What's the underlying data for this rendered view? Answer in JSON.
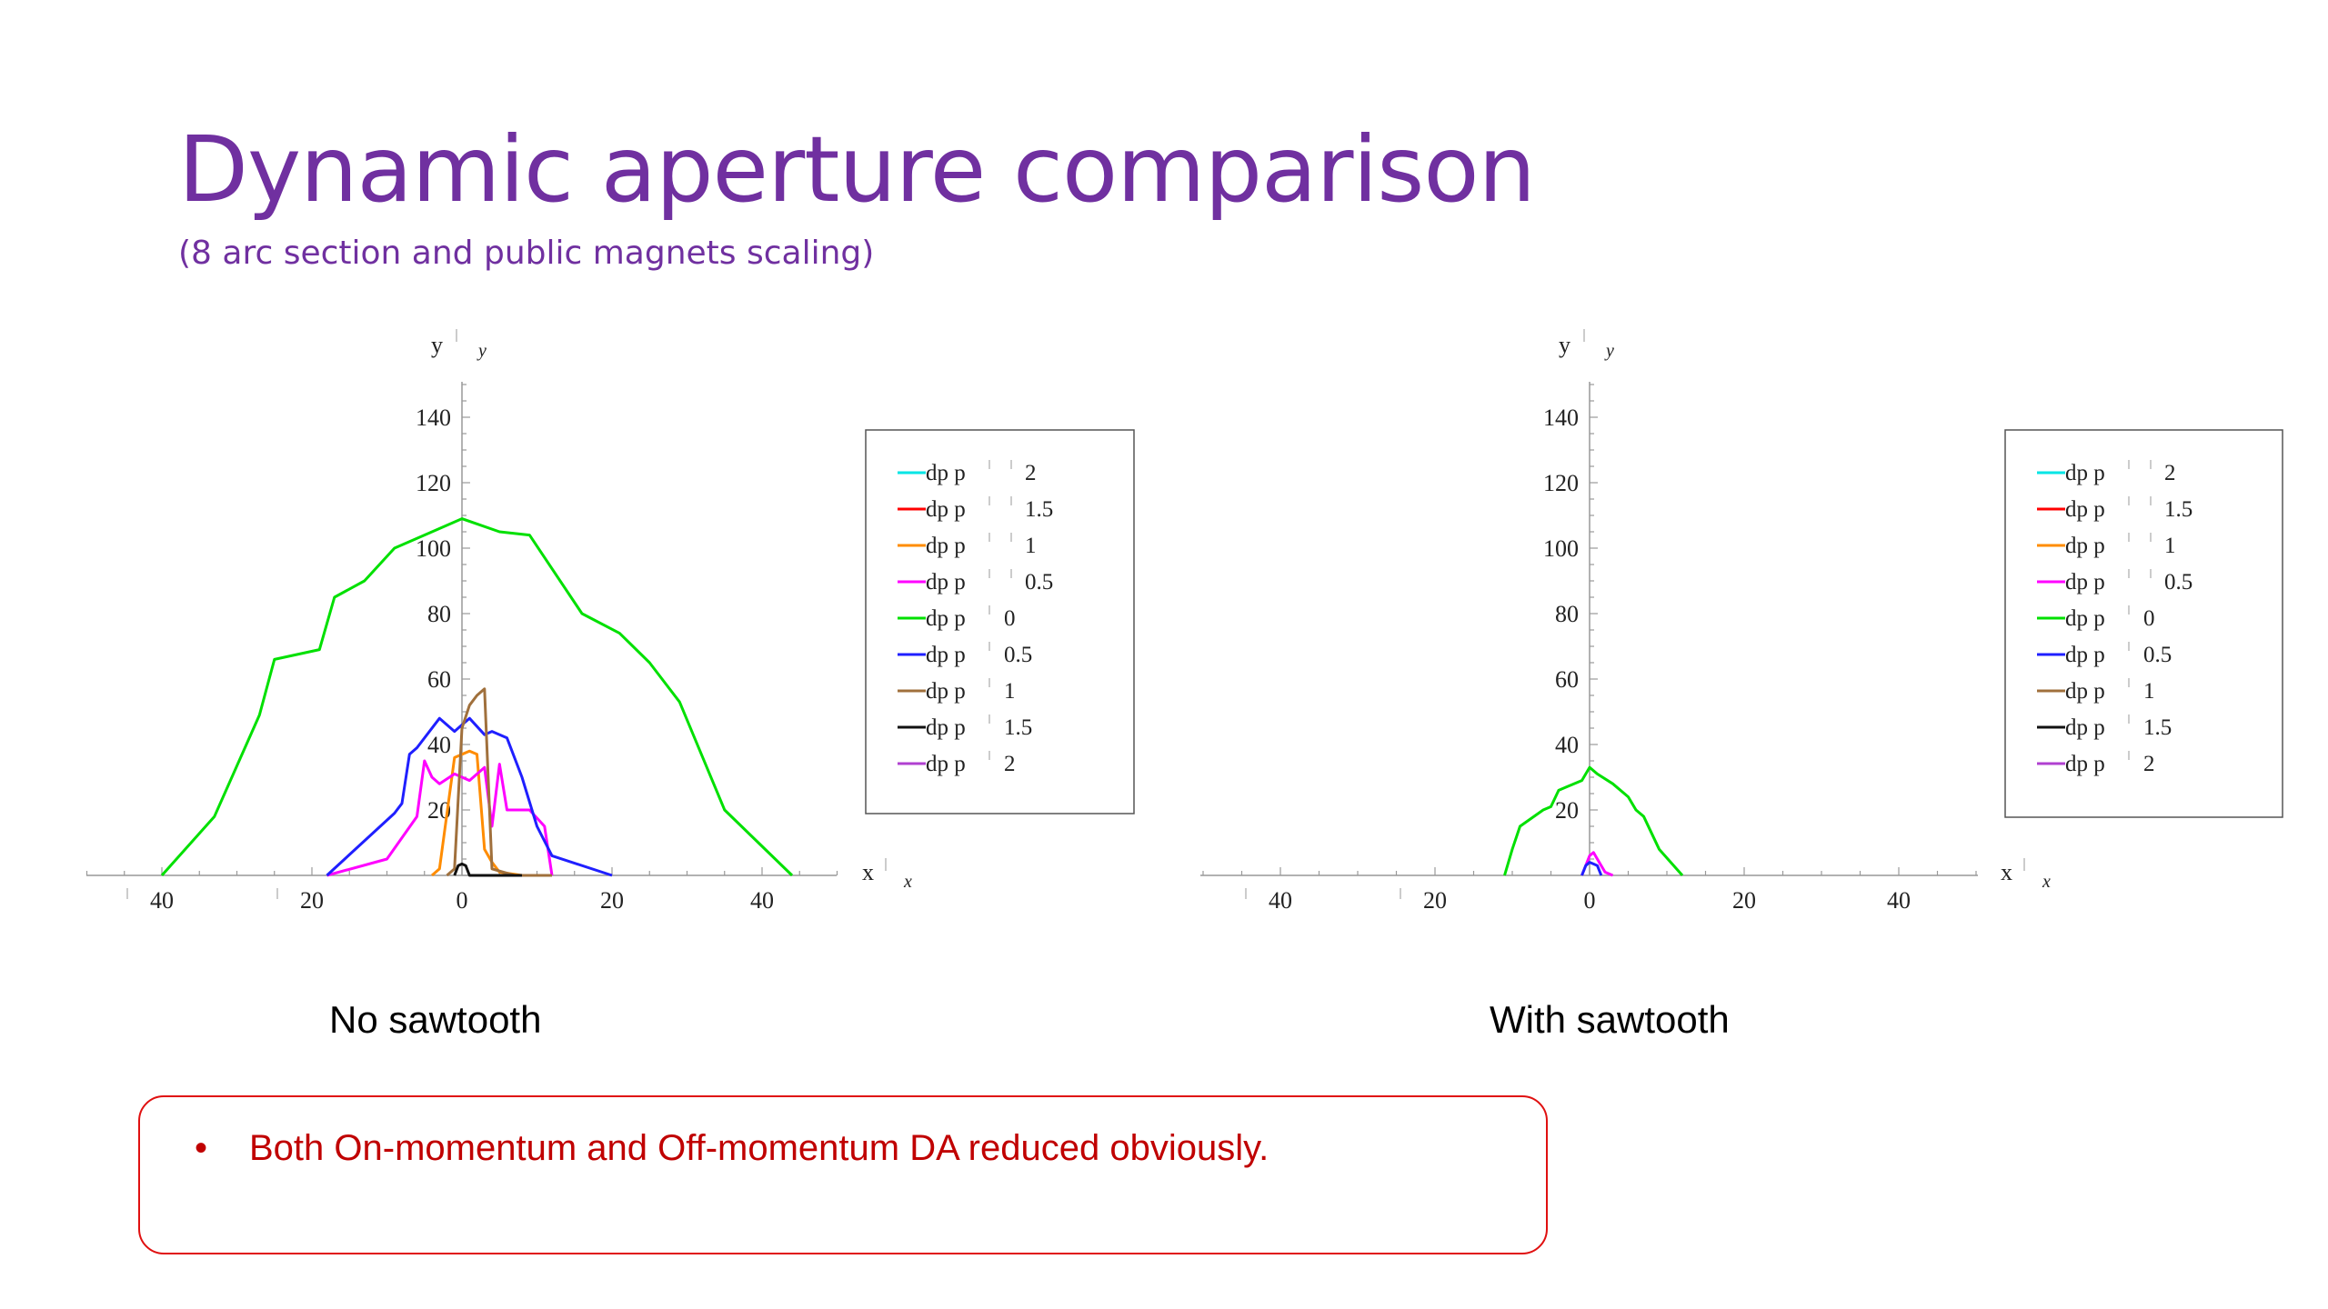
{
  "slide": {
    "title": "Dynamic aperture comparison",
    "subtitle": "(8 arc section and public magnets scaling)",
    "conclusion": {
      "bullet": "•",
      "text": "Both On-momentum and Off-momentum DA reduced obviously."
    }
  },
  "chart_data": [
    {
      "type": "line",
      "caption": "No sawtooth",
      "xlabel": "x",
      "xlabel_sub": "x",
      "ylabel": "y",
      "ylabel_sub": "y",
      "xlim": [
        -50,
        50
      ],
      "ylim": [
        0,
        150
      ],
      "x_ticks": [
        -40,
        -20,
        0,
        20,
        40
      ],
      "x_tick_labels": [
        "40",
        "20",
        "0",
        "20",
        "40"
      ],
      "y_ticks": [
        20,
        40,
        60,
        80,
        100,
        120,
        140
      ],
      "y_tick_labels": [
        "20",
        "40",
        "60",
        "80",
        "100",
        "120",
        "140"
      ],
      "legend_position": "right",
      "series": [
        {
          "name": "dp p  2",
          "label_prefix": "dp p",
          "label_value": "2",
          "color": "#00e5e5",
          "x": [],
          "y": []
        },
        {
          "name": "dp p  1.5",
          "label_prefix": "dp p",
          "label_value": "1.5",
          "color": "#ff0000",
          "x": [],
          "y": []
        },
        {
          "name": "dp p  1",
          "label_prefix": "dp p",
          "label_value": "1",
          "color": "#ff8c00",
          "x": [
            -4,
            -3,
            -1,
            1,
            2,
            3,
            4,
            5,
            8,
            12
          ],
          "y": [
            0,
            2,
            36,
            38,
            37,
            8,
            4,
            1,
            0,
            0
          ]
        },
        {
          "name": "dp p  0.5",
          "label_prefix": "dp p",
          "label_value": "0.5",
          "color": "#ff00ff",
          "x": [
            -18,
            -10,
            -6,
            -5,
            -4,
            -3,
            -1,
            1,
            3,
            4,
            5,
            6,
            9,
            11,
            12
          ],
          "y": [
            0,
            5,
            18,
            35,
            30,
            28,
            31,
            29,
            33,
            15,
            34,
            20,
            20,
            15,
            0
          ]
        },
        {
          "name": "dp p 0",
          "label_prefix": "dp p",
          "label_value": "0",
          "color": "#00e000",
          "x": [
            -40,
            -33,
            -27,
            -25,
            -19,
            -17,
            -13,
            -9,
            -5,
            0,
            5,
            9,
            16,
            21,
            25,
            29,
            35,
            44
          ],
          "y": [
            0,
            18,
            49,
            66,
            69,
            85,
            90,
            100,
            104,
            109,
            105,
            104,
            80,
            74,
            65,
            53,
            20,
            0
          ]
        },
        {
          "name": "dp p 0.5",
          "label_prefix": "dp p",
          "label_value": "0.5",
          "color": "#1f1fff",
          "x": [
            -18,
            -9,
            -8,
            -7,
            -6,
            -3,
            -1,
            0,
            1,
            3,
            4,
            6,
            8,
            10,
            12,
            20
          ],
          "y": [
            0,
            19,
            22,
            37,
            39,
            48,
            44,
            46,
            48,
            43,
            44,
            42,
            30,
            15,
            6,
            0
          ]
        },
        {
          "name": "dp p 1",
          "label_prefix": "dp p",
          "label_value": "1",
          "color": "#a0703c",
          "x": [
            -2,
            -1,
            0,
            1,
            2,
            3,
            4,
            7,
            12
          ],
          "y": [
            0,
            2,
            45,
            52,
            55,
            57,
            2,
            0,
            0
          ]
        },
        {
          "name": "dp p 1.5",
          "label_prefix": "dp p",
          "label_value": "1.5",
          "color": "#111111",
          "x": [
            -1,
            -0.5,
            0,
            0.5,
            1,
            5,
            8
          ],
          "y": [
            0,
            3,
            3.5,
            3,
            0,
            0,
            0
          ]
        },
        {
          "name": "dp p 2",
          "label_prefix": "dp p",
          "label_value": "2",
          "color": "#b040d0",
          "x": [],
          "y": []
        }
      ]
    },
    {
      "type": "line",
      "caption": "With sawtooth",
      "xlabel": "x",
      "xlabel_sub": "x",
      "ylabel": "y",
      "ylabel_sub": "y",
      "xlim": [
        -50,
        50
      ],
      "ylim": [
        0,
        150
      ],
      "x_ticks": [
        -40,
        -20,
        0,
        20,
        40
      ],
      "x_tick_labels": [
        "40",
        "20",
        "0",
        "20",
        "40"
      ],
      "y_ticks": [
        20,
        40,
        60,
        80,
        100,
        120,
        140
      ],
      "y_tick_labels": [
        "20",
        "40",
        "60",
        "80",
        "100",
        "120",
        "140"
      ],
      "legend_position": "right",
      "series": [
        {
          "name": "dp p  2",
          "label_prefix": "dp p",
          "label_value": "2",
          "color": "#00e5e5",
          "x": [],
          "y": []
        },
        {
          "name": "dp p  1.5",
          "label_prefix": "dp p",
          "label_value": "1.5",
          "color": "#ff0000",
          "x": [],
          "y": []
        },
        {
          "name": "dp p  1",
          "label_prefix": "dp p",
          "label_value": "1",
          "color": "#ff8c00",
          "x": [],
          "y": []
        },
        {
          "name": "dp p  0.5",
          "label_prefix": "dp p",
          "label_value": "0.5",
          "color": "#ff00ff",
          "x": [
            -1,
            0,
            0.5,
            1,
            2,
            3
          ],
          "y": [
            0,
            6,
            7,
            5,
            1,
            0
          ]
        },
        {
          "name": "dp p 0",
          "label_prefix": "dp p",
          "label_value": "0",
          "color": "#00e000",
          "x": [
            -11,
            -10,
            -9,
            -6,
            -5,
            -4,
            -3,
            -1,
            0,
            1,
            3,
            5,
            6,
            7,
            9,
            12
          ],
          "y": [
            0,
            8,
            15,
            20,
            21,
            26,
            27,
            29,
            33,
            31,
            28,
            24,
            20,
            18,
            8,
            0
          ]
        },
        {
          "name": "dp p 0.5",
          "label_prefix": "dp p",
          "label_value": "0.5",
          "color": "#1f1fff",
          "x": [
            -1,
            -0.5,
            0,
            0.5,
            1,
            1.5
          ],
          "y": [
            0,
            3,
            4,
            3.5,
            3,
            0
          ]
        },
        {
          "name": "dp p 1",
          "label_prefix": "dp p",
          "label_value": "1",
          "color": "#a0703c",
          "x": [],
          "y": []
        },
        {
          "name": "dp p 1.5",
          "label_prefix": "dp p",
          "label_value": "1.5",
          "color": "#111111",
          "x": [],
          "y": []
        },
        {
          "name": "dp p 2",
          "label_prefix": "dp p",
          "label_value": "2",
          "color": "#b040d0",
          "x": [],
          "y": []
        }
      ]
    }
  ]
}
